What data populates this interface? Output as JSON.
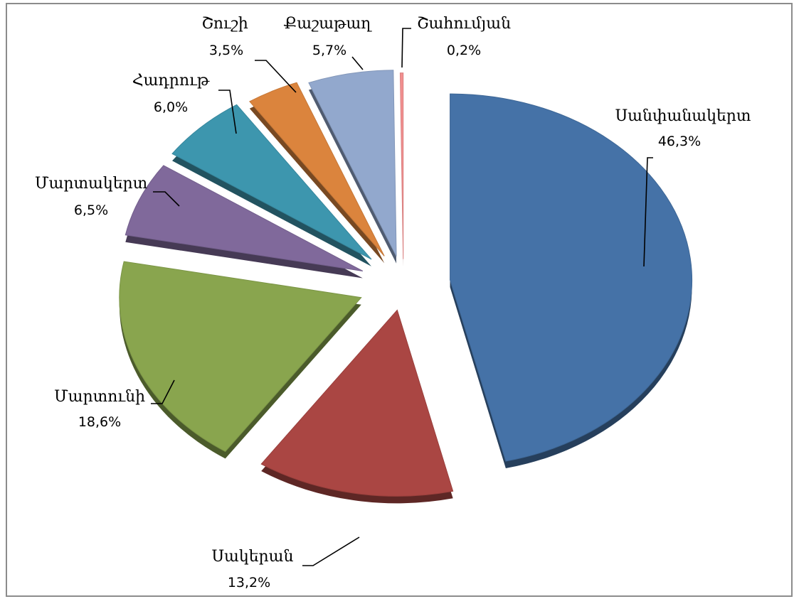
{
  "chart_data": {
    "type": "pie",
    "title": "",
    "slices": [
      {
        "label": "Սանփանակերտ",
        "value": 46.3,
        "pct_label": "46,3%",
        "color": "#4572A7"
      },
      {
        "label": "Սակերան",
        "value": 13.2,
        "pct_label": "13,2%",
        "color": "#AA4643"
      },
      {
        "label": "Մարտունի",
        "value": 18.6,
        "pct_label": "18,6%",
        "color": "#89A54E"
      },
      {
        "label": "Մարտակերտ",
        "value": 6.5,
        "pct_label": "6,5%",
        "color": "#80699B"
      },
      {
        "label": "Հադրութ",
        "value": 6.0,
        "pct_label": "6,0%",
        "color": "#3D96AE"
      },
      {
        "label": "Շուշի",
        "value": 3.5,
        "pct_label": "3,5%",
        "color": "#DB843D"
      },
      {
        "label": "Քաշաթաղ",
        "value": 5.7,
        "pct_label": "5,7%",
        "color": "#92A8CD"
      },
      {
        "label": "Շահումյան",
        "value": 0.2,
        "pct_label": "0,2%",
        "color": "#F28F8F"
      }
    ],
    "legend": "none",
    "style": "3d-exploded"
  }
}
